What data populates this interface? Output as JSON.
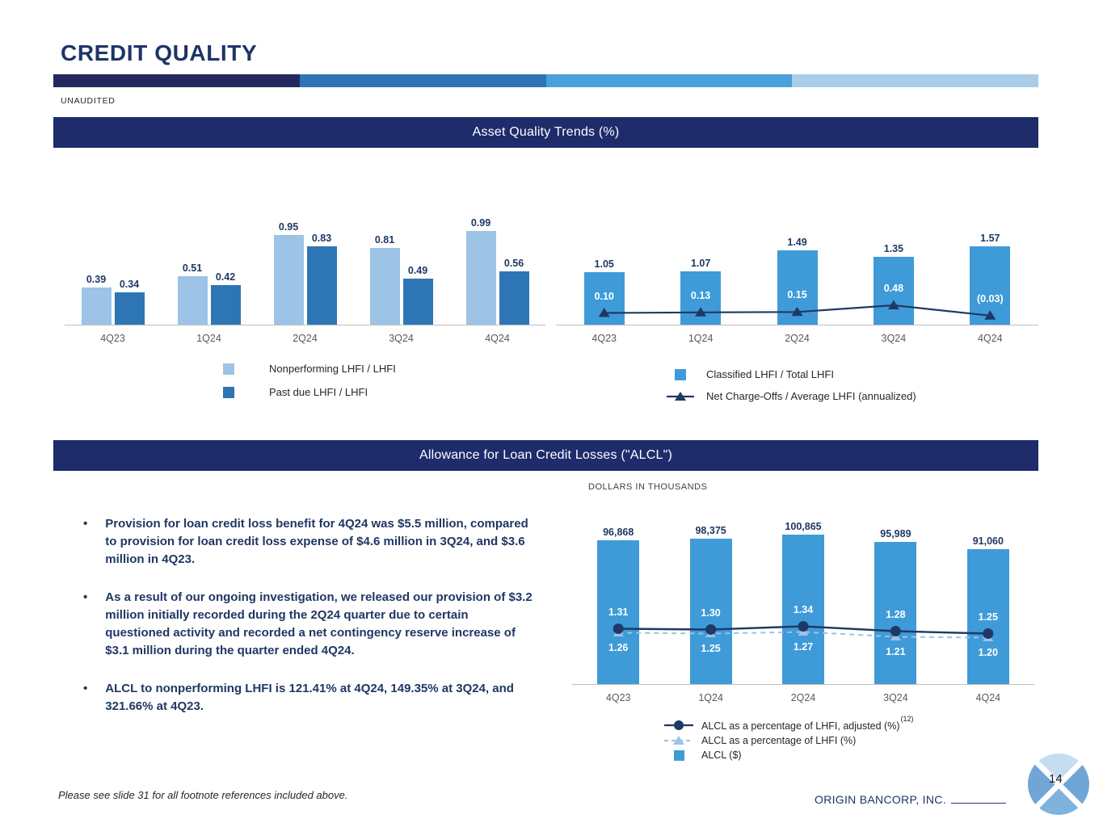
{
  "colors": {
    "title_navy": "#1F3467",
    "banner_navy": "#1E2C6B",
    "value_label_navy": "#1F3864",
    "medium_blue": "#2E75B6",
    "chart_blue": "#3E9BD8",
    "light_blue": "#9DC3E6",
    "gradient": [
      "#23295F",
      "#2E75B6",
      "#4AA0D8",
      "#A9CCE9"
    ]
  },
  "header": {
    "title": "CREDIT QUALITY",
    "unaudited": "UNAUDITED"
  },
  "banners": {
    "asset_quality": "Asset Quality Trends (%)",
    "alcl": "Allowance for Loan Credit Losses (\"ALCL\")"
  },
  "bullets": [
    "Provision for loan credit loss benefit for 4Q24 was $5.5 million, compared to provision for loan credit loss expense of $4.6 million in 3Q24, and $3.6 million in 4Q23.",
    "As a result of our ongoing investigation, we released our provision of $3.2 million initially recorded during the 2Q24 quarter due to certain questioned activity and recorded a net contingency reserve increase of $3.1 million during the quarter ended 4Q24.",
    "ALCL to nonperforming LHFI is 121.41% at 4Q24, 149.35% at 3Q24, and 321.66% at 4Q23."
  ],
  "footer": {
    "note": "Please see slide 31 for all footnote references included above.",
    "company": "ORIGIN BANCORP, INC.",
    "page_number": "14"
  },
  "chart_data": [
    {
      "type": "bar",
      "title": "Asset Quality Trends (%) — left panel",
      "categories": [
        "4Q23",
        "1Q24",
        "2Q24",
        "3Q24",
        "4Q24"
      ],
      "series": [
        {
          "name": "Nonperforming LHFI / LHFI",
          "values": [
            0.39,
            0.51,
            0.95,
            0.81,
            0.99
          ],
          "labels": [
            "0.39",
            "0.51",
            "0.95",
            "0.81",
            "0.99"
          ],
          "color": "#9DC3E6"
        },
        {
          "name": "Past due LHFI / LHFI",
          "values": [
            0.34,
            0.42,
            0.83,
            0.49,
            0.56
          ],
          "labels": [
            "0.34",
            "0.42",
            "0.83",
            "0.49",
            "0.56"
          ],
          "color": "#2E75B6"
        }
      ],
      "ylim": [
        0,
        1.1
      ],
      "grid": false,
      "legend_position": "bottom"
    },
    {
      "type": "bar+line",
      "title": "Asset Quality Trends (%) — right panel",
      "categories": [
        "4Q23",
        "1Q24",
        "2Q24",
        "3Q24",
        "4Q24"
      ],
      "bar_series": {
        "name": "Classified LHFI / Total LHFI",
        "values": [
          1.05,
          1.07,
          1.49,
          1.35,
          1.57
        ],
        "labels": [
          "1.05",
          "1.07",
          "1.49",
          "1.35",
          "1.57"
        ],
        "color": "#3E9BD8"
      },
      "line_series": {
        "name": "Net Charge-Offs / Average LHFI (annualized)",
        "values": [
          0.1,
          0.13,
          0.15,
          0.48,
          -0.03
        ],
        "labels": [
          "0.10",
          "0.13",
          "0.15",
          "0.48",
          "(0.03)"
        ],
        "color": "#1F3864",
        "marker": "triangle"
      },
      "ylim": [
        0,
        1.7
      ],
      "grid": false,
      "legend_position": "bottom"
    },
    {
      "type": "bar+2lines",
      "title": "Allowance for Loan Credit Losses",
      "subtitle": "DOLLARS IN THOUSANDS",
      "categories": [
        "4Q23",
        "1Q24",
        "2Q24",
        "3Q24",
        "4Q24"
      ],
      "bar_series": {
        "name": "ALCL ($)",
        "values": [
          96868,
          98375,
          100865,
          95989,
          91060
        ],
        "labels": [
          "96,868",
          "98,375",
          "100,865",
          "95,989",
          "91,060"
        ],
        "color": "#3E9BD8"
      },
      "line_series": [
        {
          "name": "ALCL as a percentage of LHFI, adjusted (%)",
          "footnote": "(12)",
          "values": [
            1.31,
            1.3,
            1.34,
            1.28,
            1.25
          ],
          "labels": [
            "1.31",
            "1.30",
            "1.34",
            "1.28",
            "1.25"
          ],
          "color": "#1F3864",
          "marker": "circle",
          "dashed": false
        },
        {
          "name": "ALCL as a percentage of LHFI (%)",
          "values": [
            1.26,
            1.25,
            1.27,
            1.21,
            1.2
          ],
          "labels": [
            "1.26",
            "1.25",
            "1.27",
            "1.21",
            "1.20"
          ],
          "color": "#9DC3E6",
          "marker": "triangle",
          "dashed": true
        }
      ],
      "grid": false,
      "legend_position": "bottom"
    }
  ]
}
